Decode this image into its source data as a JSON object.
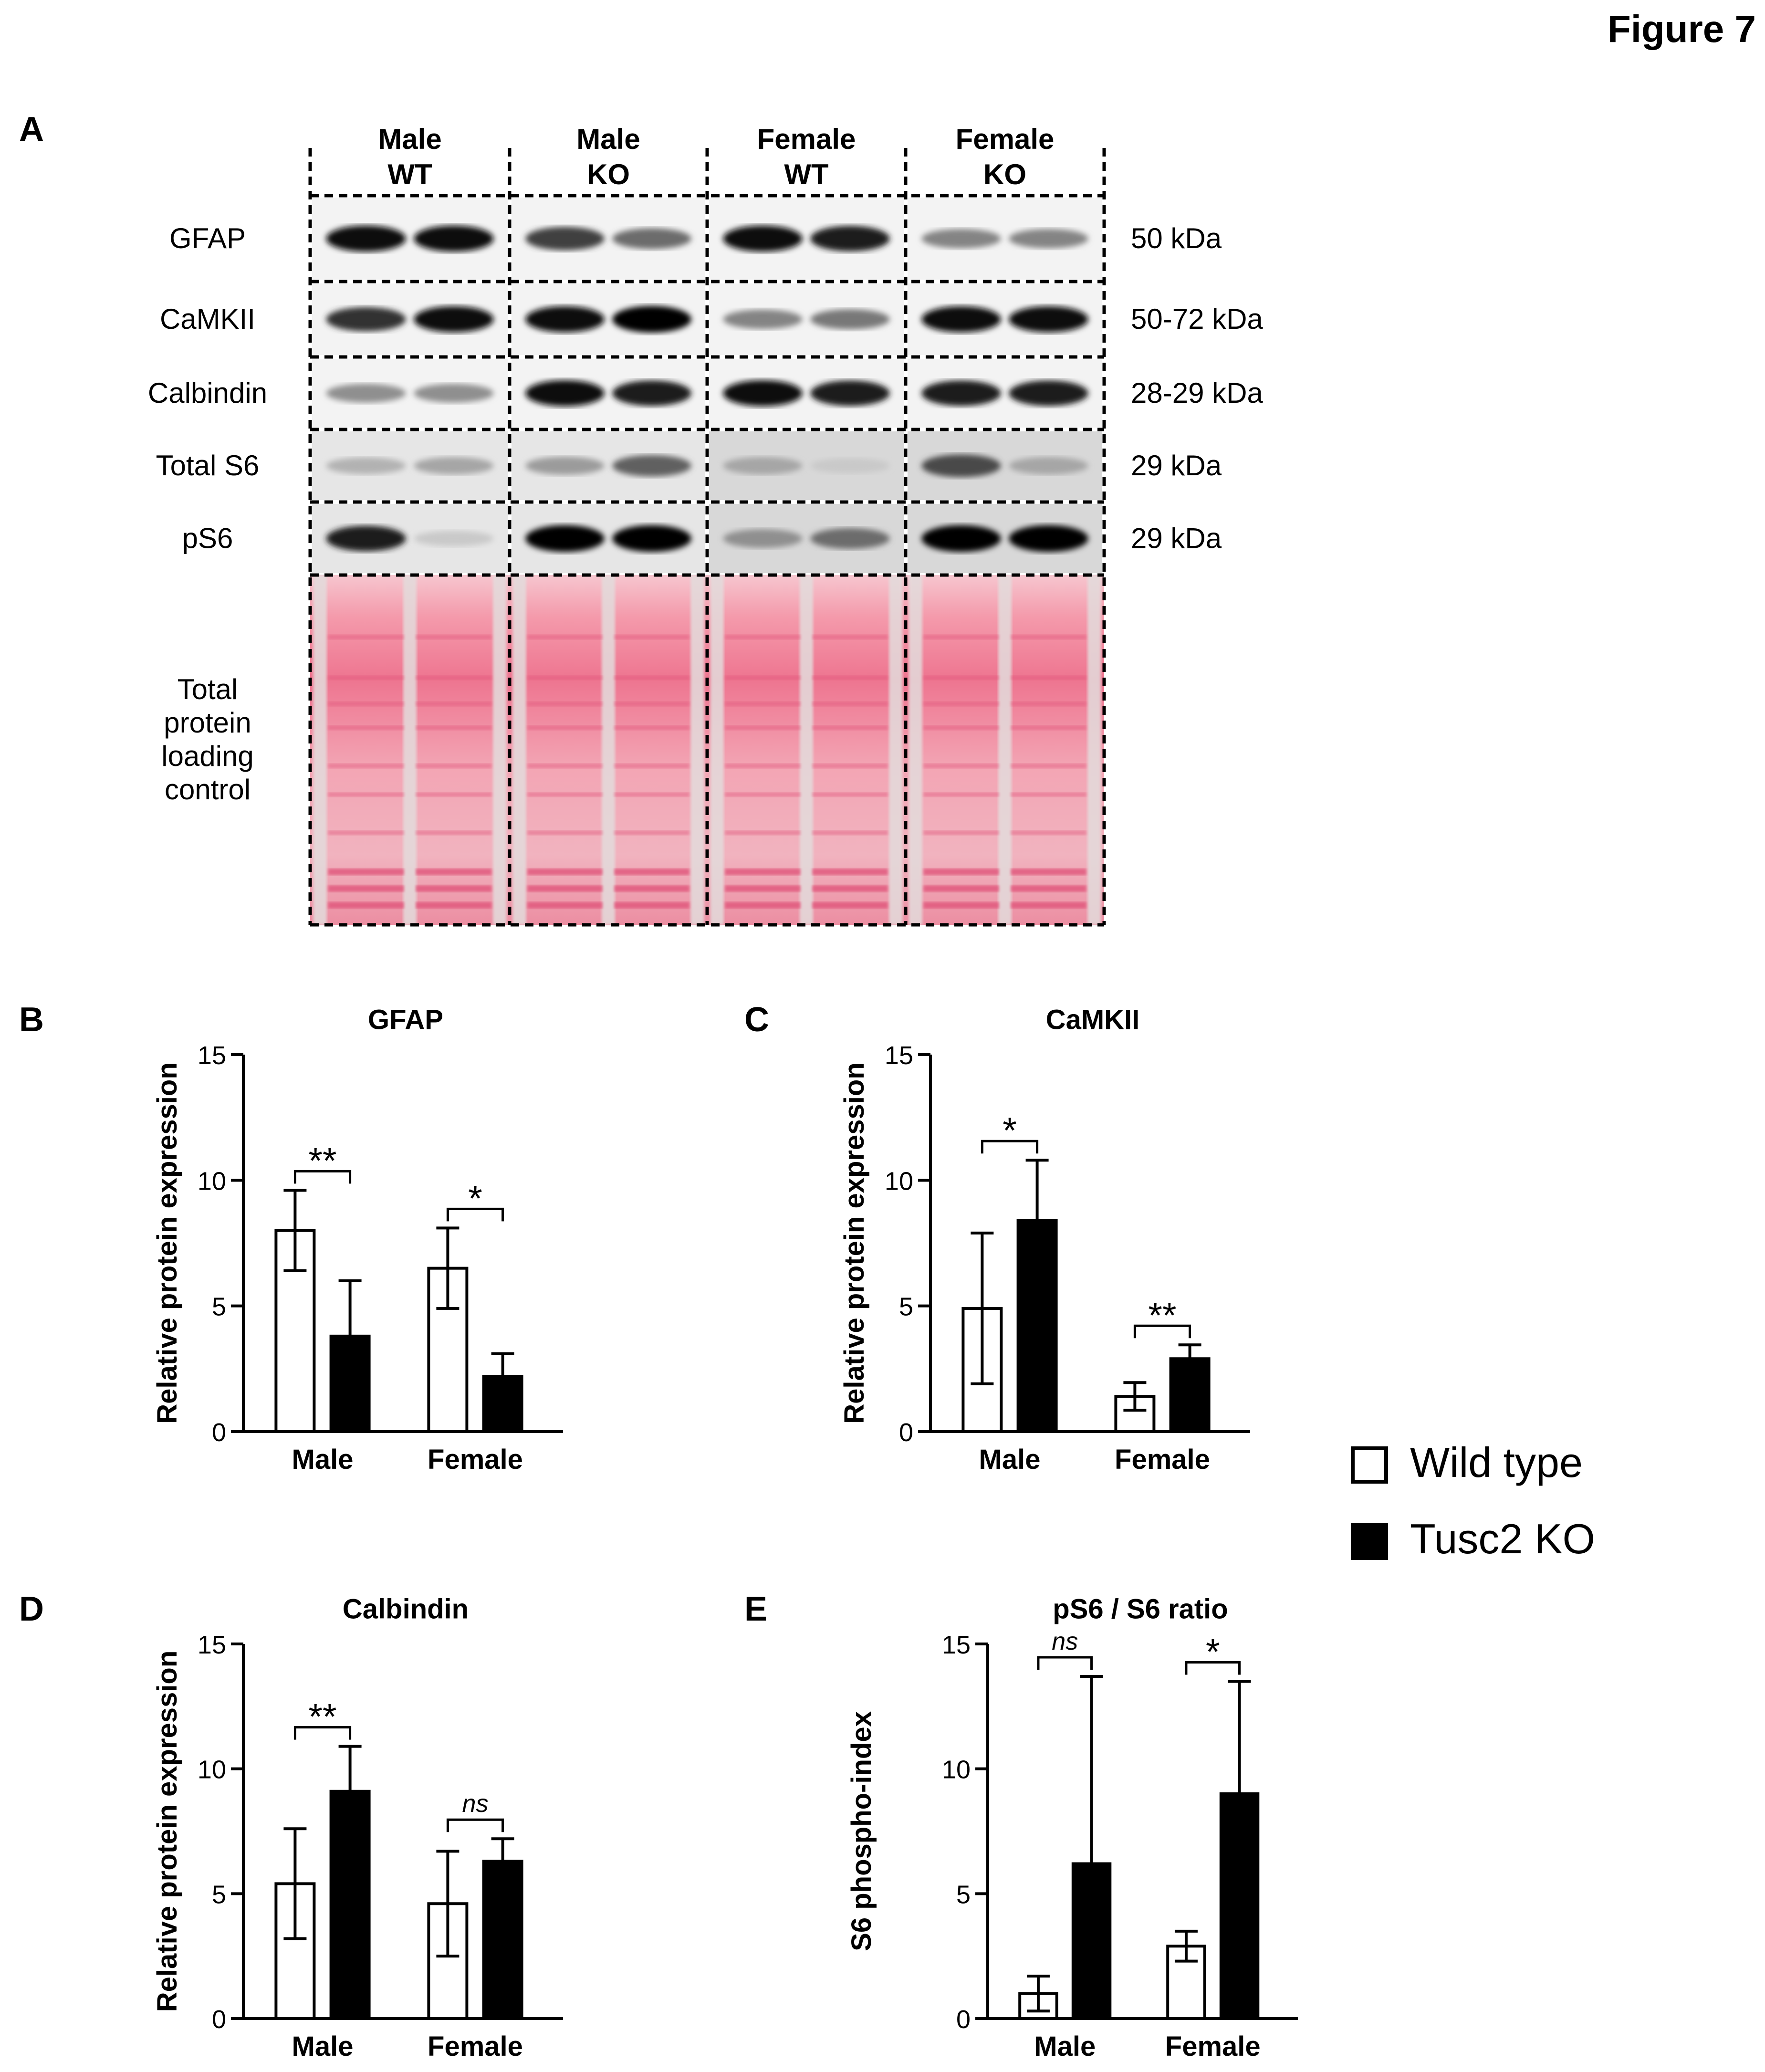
{
  "figure_label": "Figure 7",
  "panel_a": {
    "label": "A",
    "groups": [
      "Male WT",
      "Male KO",
      "Female WT",
      "Female KO"
    ],
    "group_lines": [
      [
        "Male",
        "WT"
      ],
      [
        "Male",
        "KO"
      ],
      [
        "Female",
        "WT"
      ],
      [
        "Female",
        "KO"
      ]
    ],
    "rows": [
      {
        "name": "GFAP",
        "kda": "50 kDa",
        "intensity": [
          [
            0.95,
            0.95
          ],
          [
            0.75,
            0.55
          ],
          [
            0.95,
            0.9
          ],
          [
            0.45,
            0.45
          ]
        ]
      },
      {
        "name": "CaMKII",
        "kda": "50-72 kDa",
        "intensity": [
          [
            0.8,
            0.95
          ],
          [
            0.95,
            1.0
          ],
          [
            0.45,
            0.5
          ],
          [
            0.95,
            0.95
          ]
        ]
      },
      {
        "name": "Calbindin",
        "kda": "28-29 kDa",
        "intensity": [
          [
            0.4,
            0.4
          ],
          [
            0.95,
            0.9
          ],
          [
            0.95,
            0.9
          ],
          [
            0.9,
            0.9
          ]
        ]
      },
      {
        "name": "Total S6",
        "kda": "29 kDa",
        "intensity": [
          [
            0.25,
            0.3
          ],
          [
            0.35,
            0.6
          ],
          [
            0.3,
            0.15
          ],
          [
            0.7,
            0.3
          ]
        ]
      },
      {
        "name": "pS6",
        "kda": "29 kDa",
        "intensity": [
          [
            0.9,
            0.15
          ],
          [
            1.0,
            1.0
          ],
          [
            0.4,
            0.55
          ],
          [
            1.0,
            1.0
          ]
        ]
      }
    ],
    "loading_label": [
      "Total",
      "protein",
      "loading",
      "control"
    ]
  },
  "legend": {
    "items": [
      {
        "label": "Wild type",
        "fill": "#ffffff"
      },
      {
        "label": "Tusc2 KO",
        "fill": "#000000"
      }
    ]
  },
  "chart_data": [
    {
      "panel": "B",
      "type": "bar",
      "title": "GFAP",
      "ylabel": "Relative protein expression",
      "ylim": [
        0,
        15
      ],
      "yticks": [
        0,
        5,
        10,
        15
      ],
      "categories": [
        "Male",
        "Female"
      ],
      "series": [
        {
          "name": "Wild type",
          "values": [
            8.0,
            6.5
          ],
          "errors": [
            1.6,
            1.6
          ]
        },
        {
          "name": "Tusc2 KO",
          "values": [
            3.8,
            2.2
          ],
          "errors": [
            2.2,
            0.9
          ]
        }
      ],
      "significance": [
        "**",
        "*"
      ]
    },
    {
      "panel": "C",
      "type": "bar",
      "title": "CaMKII",
      "ylabel": "Relative protein expression",
      "ylim": [
        0,
        15
      ],
      "yticks": [
        0,
        5,
        10,
        15
      ],
      "categories": [
        "Male",
        "Female"
      ],
      "series": [
        {
          "name": "Wild type",
          "values": [
            4.9,
            1.4
          ],
          "errors": [
            3.0,
            0.55
          ]
        },
        {
          "name": "Tusc2 KO",
          "values": [
            8.4,
            2.9
          ],
          "errors": [
            2.4,
            0.55
          ]
        }
      ],
      "significance": [
        "*",
        "**"
      ]
    },
    {
      "panel": "D",
      "type": "bar",
      "title": "Calbindin",
      "ylabel": "Relative protein expression",
      "ylim": [
        0,
        15
      ],
      "yticks": [
        0,
        5,
        10,
        15
      ],
      "categories": [
        "Male",
        "Female"
      ],
      "series": [
        {
          "name": "Wild type",
          "values": [
            5.4,
            4.6
          ],
          "errors": [
            2.2,
            2.1
          ]
        },
        {
          "name": "Tusc2 KO",
          "values": [
            9.1,
            6.3
          ],
          "errors": [
            1.8,
            0.9
          ]
        }
      ],
      "significance": [
        "**",
        "ns"
      ]
    },
    {
      "panel": "E",
      "type": "bar",
      "title": "pS6 / S6 ratio",
      "ylabel": "S6 phospho-index",
      "ylim": [
        0,
        15
      ],
      "yticks": [
        0,
        5,
        10,
        15
      ],
      "categories": [
        "Male",
        "Female"
      ],
      "series": [
        {
          "name": "Wild type",
          "values": [
            1.0,
            2.9
          ],
          "errors": [
            0.7,
            0.6
          ]
        },
        {
          "name": "Tusc2 KO",
          "values": [
            6.2,
            9.0
          ],
          "errors": [
            7.5,
            4.5
          ]
        }
      ],
      "significance": [
        "ns",
        "*"
      ]
    }
  ]
}
